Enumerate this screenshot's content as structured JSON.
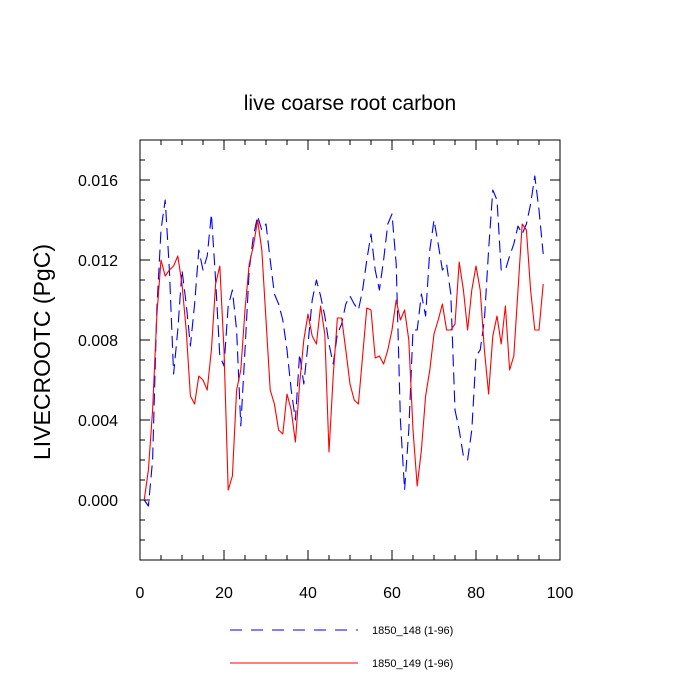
{
  "chart_data": {
    "type": "line",
    "title": "live coarse root carbon",
    "xlabel": "",
    "ylabel": "LIVECROOTC  (PgC)",
    "xlim": [
      0,
      100
    ],
    "ylim": [
      -0.003,
      0.018
    ],
    "xticks": [
      0,
      20,
      40,
      60,
      80,
      100
    ],
    "xtick_labels": [
      "0",
      "20",
      "40",
      "60",
      "80",
      "100"
    ],
    "yticks": [
      0.0,
      0.004,
      0.008,
      0.012,
      0.016
    ],
    "ytick_labels": [
      "0.000",
      "0.004",
      "0.008",
      "0.012",
      "0.016"
    ],
    "legend_position": "bottom-center",
    "series": [
      {
        "name": "1850_148 (1-96)",
        "color": "#0000ff",
        "dash": "dashed",
        "x": [
          1,
          2,
          3,
          4,
          5,
          6,
          7,
          8,
          9,
          10,
          11,
          12,
          13,
          14,
          15,
          16,
          17,
          18,
          19,
          20,
          21,
          22,
          23,
          24,
          25,
          26,
          27,
          28,
          29,
          30,
          31,
          32,
          33,
          34,
          35,
          36,
          37,
          38,
          39,
          40,
          41,
          42,
          43,
          44,
          45,
          46,
          47,
          48,
          49,
          50,
          51,
          52,
          53,
          54,
          55,
          56,
          57,
          58,
          59,
          60,
          61,
          62,
          63,
          64,
          65,
          66,
          67,
          68,
          69,
          70,
          71,
          72,
          73,
          74,
          75,
          76,
          77,
          78,
          79,
          80,
          81,
          82,
          83,
          84,
          85,
          86,
          87,
          88,
          89,
          90,
          91,
          92,
          93,
          94,
          95,
          96
        ],
        "values": [
          0.0,
          -0.0003,
          0.002,
          0.0095,
          0.0135,
          0.015,
          0.0115,
          0.0063,
          0.0085,
          0.0115,
          0.0098,
          0.0077,
          0.0098,
          0.0125,
          0.0115,
          0.0122,
          0.0143,
          0.011,
          0.0072,
          0.0067,
          0.0097,
          0.0105,
          0.0085,
          0.0037,
          0.0075,
          0.0115,
          0.0132,
          0.0142,
          0.0135,
          0.0138,
          0.012,
          0.0103,
          0.0098,
          0.009,
          0.0075,
          0.0055,
          0.004,
          0.0073,
          0.0058,
          0.0078,
          0.01,
          0.011,
          0.0102,
          0.0092,
          0.0078,
          0.0068,
          0.0083,
          0.0088,
          0.0098,
          0.0102,
          0.0098,
          0.0095,
          0.0105,
          0.012,
          0.0133,
          0.0115,
          0.0105,
          0.012,
          0.0138,
          0.0143,
          0.0118,
          0.004,
          0.0005,
          0.0035,
          0.0085,
          0.0085,
          0.0103,
          0.0092,
          0.0125,
          0.014,
          0.0128,
          0.0115,
          0.0118,
          0.0103,
          0.0045,
          0.0035,
          0.0022,
          0.002,
          0.0035,
          0.0072,
          0.0075,
          0.009,
          0.0125,
          0.0155,
          0.015,
          0.0115,
          0.0115,
          0.0122,
          0.0128,
          0.0137,
          0.0133,
          0.0138,
          0.0148,
          0.0162,
          0.0145,
          0.0123
        ]
      },
      {
        "name": "1850_149 (1-96)",
        "color": "#ff0000",
        "dash": "solid",
        "x": [
          1,
          2,
          3,
          4,
          5,
          6,
          7,
          8,
          9,
          10,
          11,
          12,
          13,
          14,
          15,
          16,
          17,
          18,
          19,
          20,
          21,
          22,
          23,
          24,
          25,
          26,
          27,
          28,
          29,
          30,
          31,
          32,
          33,
          34,
          35,
          36,
          37,
          38,
          39,
          40,
          41,
          42,
          43,
          44,
          45,
          46,
          47,
          48,
          49,
          50,
          51,
          52,
          53,
          54,
          55,
          56,
          57,
          58,
          59,
          60,
          61,
          62,
          63,
          64,
          65,
          66,
          67,
          68,
          69,
          70,
          71,
          72,
          73,
          74,
          75,
          76,
          77,
          78,
          79,
          80,
          81,
          82,
          83,
          84,
          85,
          86,
          87,
          88,
          89,
          90,
          91,
          92,
          93,
          94,
          95,
          96
        ],
        "values": [
          0.0,
          0.0015,
          0.0045,
          0.0092,
          0.012,
          0.0112,
          0.0115,
          0.0117,
          0.0122,
          0.0108,
          0.0085,
          0.0052,
          0.0048,
          0.0062,
          0.006,
          0.0055,
          0.0075,
          0.0108,
          0.0117,
          0.0075,
          0.0005,
          0.0012,
          0.0055,
          0.0065,
          0.0095,
          0.0118,
          0.0127,
          0.014,
          0.0125,
          0.009,
          0.0055,
          0.0048,
          0.0035,
          0.0033,
          0.0053,
          0.0045,
          0.0029,
          0.0058,
          0.008,
          0.0093,
          0.0082,
          0.0078,
          0.0097,
          0.0083,
          0.0024,
          0.0062,
          0.0091,
          0.0091,
          0.0075,
          0.0058,
          0.005,
          0.0048,
          0.0072,
          0.0096,
          0.0095,
          0.0071,
          0.0072,
          0.0068,
          0.0075,
          0.0085,
          0.01,
          0.009,
          0.0095,
          0.008,
          0.0035,
          0.0007,
          0.0025,
          0.0052,
          0.0065,
          0.0083,
          0.009,
          0.0098,
          0.0085,
          0.0085,
          0.0088,
          0.0119,
          0.0105,
          0.0085,
          0.0105,
          0.0117,
          0.0105,
          0.0075,
          0.0053,
          0.0082,
          0.0092,
          0.0078,
          0.0097,
          0.0065,
          0.0072,
          0.0105,
          0.0138,
          0.0135,
          0.0105,
          0.0085,
          0.0085,
          0.0108
        ]
      }
    ]
  }
}
